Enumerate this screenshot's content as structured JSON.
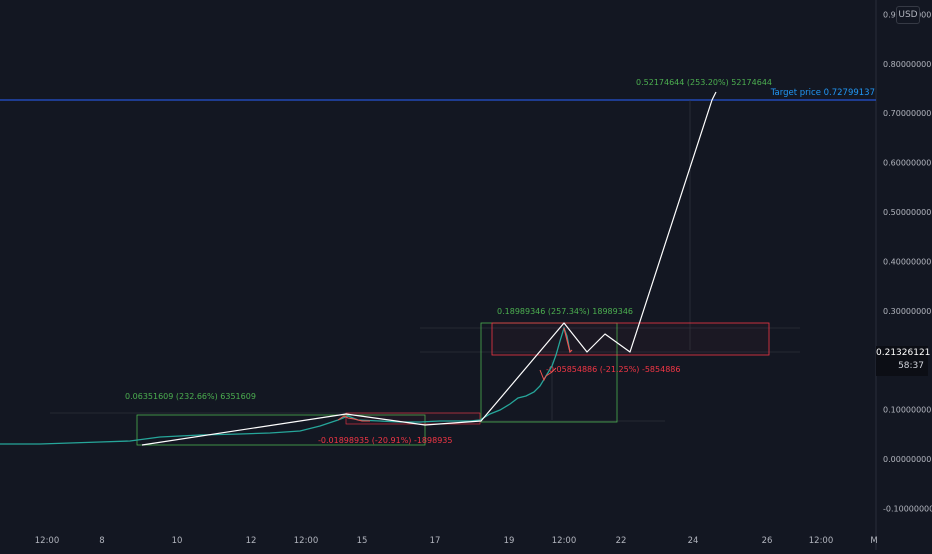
{
  "currency_badge": "USD",
  "current_price": "0.21326121",
  "countdown": "58:37",
  "target_label": "Target price 0.72799137",
  "y_axis": [
    {
      "label": "0.90000000",
      "value": 0.9
    },
    {
      "label": "0.80000000",
      "value": 0.8
    },
    {
      "label": "0.70000000",
      "value": 0.7
    },
    {
      "label": "0.60000000",
      "value": 0.6
    },
    {
      "label": "0.50000000",
      "value": 0.5
    },
    {
      "label": "0.40000000",
      "value": 0.4
    },
    {
      "label": "0.30000000",
      "value": 0.3
    },
    {
      "label": "0.10000000",
      "value": 0.1
    },
    {
      "label": "0.00000000",
      "value": 0.0
    },
    {
      "label": "-0.10000000",
      "value": -0.1
    }
  ],
  "x_axis": [
    "12:00",
    "8",
    "10",
    "12",
    "12:00",
    "15",
    "17",
    "19",
    "12:00",
    "22",
    "24",
    "26",
    "12:00",
    "M"
  ],
  "measurements": [
    {
      "label": "0.06351609 (232.66%) 6351609",
      "color": "#4caf50"
    },
    {
      "label": "-0.01898935 (-20.91%) -1898935",
      "color": "#f23645"
    },
    {
      "label": "0.18989346 (257.34%) 18989346",
      "color": "#4caf50"
    },
    {
      "label": "-0.05854886 (-21.25%) -5854886",
      "color": "#f23645"
    },
    {
      "label": "0.52174644 (253.20%) 52174644",
      "color": "#4caf50"
    }
  ]
}
